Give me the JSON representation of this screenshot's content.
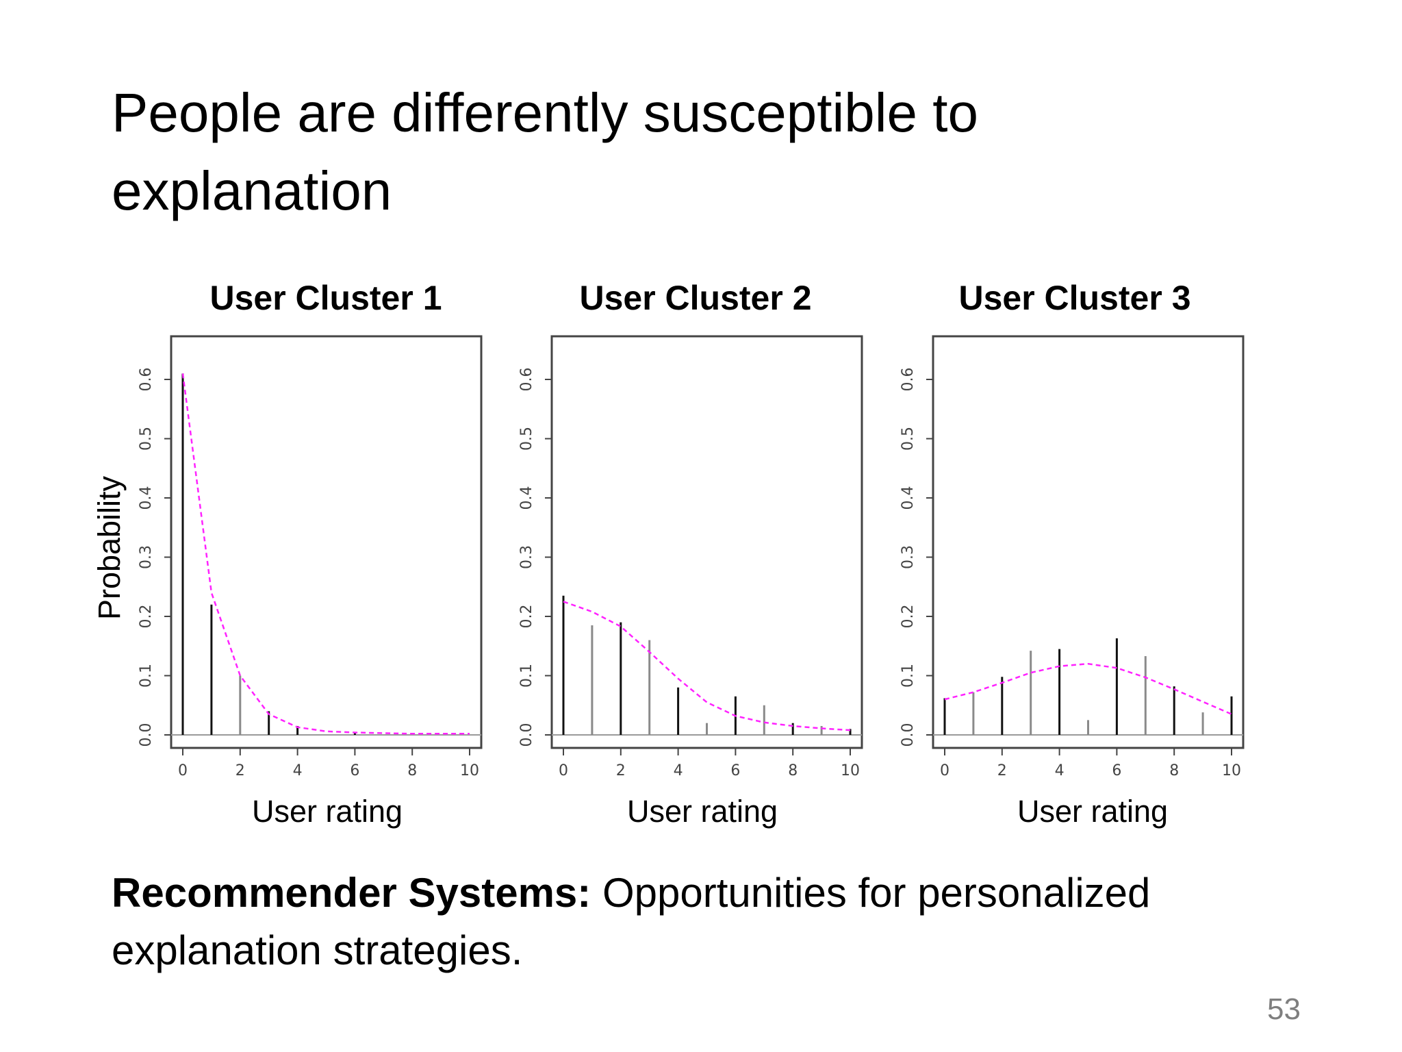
{
  "slide": {
    "title": "People are differently susceptible to explanation",
    "caption_bold": "Recommender Systems:",
    "caption_rest": " Opportunities for personalized explanation strategies.",
    "page_number": "53"
  },
  "colors": {
    "bar": "#111111",
    "bar_alt": "#8a8a8a",
    "fit_line": "#ff22ff",
    "axis": "#444444"
  },
  "chart_data": [
    {
      "type": "bar",
      "title": "User Cluster 1",
      "xlabel": "User rating",
      "ylabel": "Probability",
      "x": [
        0,
        1,
        2,
        3,
        4,
        5,
        6,
        7,
        8,
        9,
        10
      ],
      "values": [
        0.61,
        0.22,
        0.1,
        0.04,
        0.015,
        0.0,
        0.005,
        0.0,
        0.0,
        0.0,
        0.0
      ],
      "fit": [
        0.61,
        0.24,
        0.1,
        0.035,
        0.013,
        0.006,
        0.004,
        0.003,
        0.002,
        0.002,
        0.002
      ],
      "xlim": [
        0,
        10
      ],
      "ylim": [
        0,
        0.6
      ],
      "xticks": [
        0,
        2,
        4,
        6,
        8,
        10
      ],
      "yticks": [
        0.0,
        0.1,
        0.2,
        0.3,
        0.4,
        0.5,
        0.6
      ],
      "grid": false
    },
    {
      "type": "bar",
      "title": "User Cluster 2",
      "xlabel": "User rating",
      "ylabel": "",
      "x": [
        0,
        1,
        2,
        3,
        4,
        5,
        6,
        7,
        8,
        9,
        10
      ],
      "values": [
        0.235,
        0.185,
        0.19,
        0.16,
        0.08,
        0.02,
        0.065,
        0.05,
        0.02,
        0.015,
        0.01
      ],
      "fit": [
        0.225,
        0.208,
        0.183,
        0.14,
        0.095,
        0.055,
        0.032,
        0.021,
        0.015,
        0.011,
        0.008
      ],
      "xlim": [
        0,
        10
      ],
      "ylim": [
        0,
        0.6
      ],
      "xticks": [
        0,
        2,
        4,
        6,
        8,
        10
      ],
      "yticks": [
        0.0,
        0.1,
        0.2,
        0.3,
        0.4,
        0.5,
        0.6
      ],
      "grid": false
    },
    {
      "type": "bar",
      "title": "User Cluster 3",
      "xlabel": "User rating",
      "ylabel": "",
      "x": [
        0,
        1,
        2,
        3,
        4,
        5,
        6,
        7,
        8,
        9,
        10
      ],
      "values": [
        0.062,
        0.072,
        0.098,
        0.142,
        0.145,
        0.025,
        0.163,
        0.133,
        0.082,
        0.038,
        0.065
      ],
      "fit": [
        0.06,
        0.072,
        0.088,
        0.105,
        0.116,
        0.12,
        0.113,
        0.097,
        0.077,
        0.056,
        0.035
      ],
      "xlim": [
        0,
        10
      ],
      "ylim": [
        0,
        0.6
      ],
      "xticks": [
        0,
        2,
        4,
        6,
        8,
        10
      ],
      "yticks": [
        0.0,
        0.1,
        0.2,
        0.3,
        0.4,
        0.5,
        0.6
      ],
      "grid": false
    }
  ]
}
